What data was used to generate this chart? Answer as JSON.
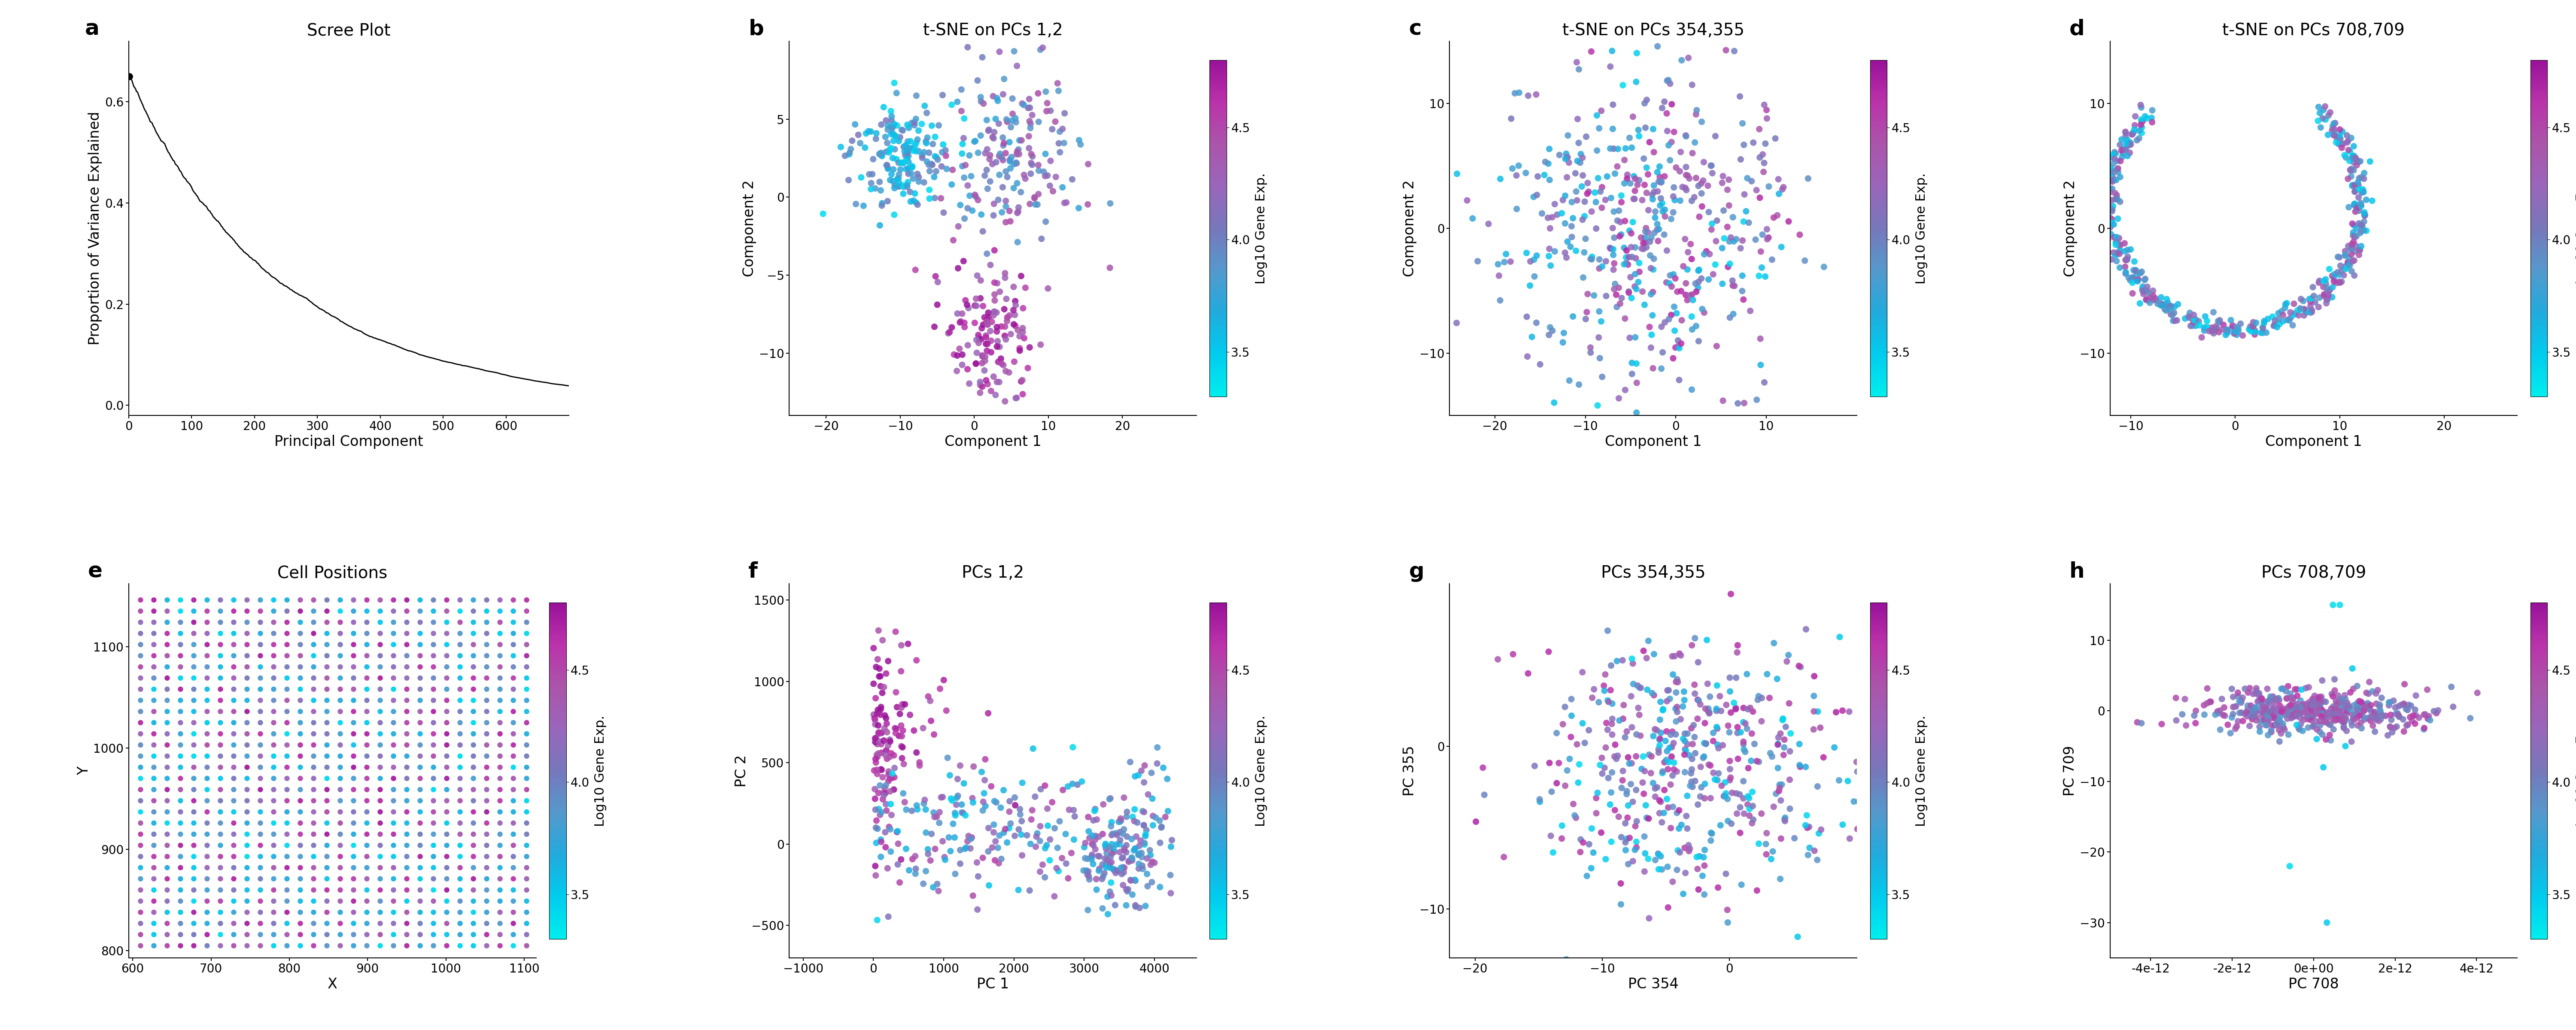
{
  "panels": {
    "a": {
      "title": "Scree Plot",
      "xlabel": "Principal Component",
      "ylabel": "Proportion of Variance Explained",
      "xlim": [
        0,
        700
      ],
      "ylim": [
        -0.02,
        0.72
      ],
      "xticks": [
        0,
        100,
        200,
        300,
        400,
        500,
        600
      ],
      "yticks": [
        0.0,
        0.2,
        0.4,
        0.6
      ]
    },
    "b": {
      "title": "t-SNE on PCs 1,2",
      "xlabel": "Component 1",
      "ylabel": "Component 2",
      "xlim": [
        -25,
        30
      ],
      "ylim": [
        -14,
        10
      ],
      "xticks": [
        -20,
        -10,
        0,
        10,
        20
      ],
      "yticks": [
        -10,
        -5,
        0,
        5
      ]
    },
    "c": {
      "title": "t-SNE on PCs 354,355",
      "xlabel": "Component 1",
      "ylabel": "Component 2",
      "xlim": [
        -25,
        20
      ],
      "ylim": [
        -15,
        15
      ],
      "xticks": [
        -20,
        -10,
        0,
        10
      ],
      "yticks": [
        -10,
        0,
        10
      ]
    },
    "d": {
      "title": "t-SNE on PCs 708,709",
      "xlabel": "Component 1",
      "ylabel": "Component 2",
      "xlim": [
        -12,
        27
      ],
      "ylim": [
        -15,
        15
      ],
      "xticks": [
        -10,
        0,
        10,
        20
      ],
      "yticks": [
        -10,
        0,
        10
      ]
    },
    "e": {
      "title": "Cell Positions",
      "xlabel": "X",
      "ylabel": "Y",
      "xlim": [
        595,
        1115
      ],
      "ylim": [
        793,
        1162
      ],
      "xticks": [
        600,
        700,
        800,
        900,
        1000,
        1100
      ],
      "yticks": [
        800,
        900,
        1000,
        1100
      ]
    },
    "f": {
      "title": "PCs 1,2",
      "xlabel": "PC 1",
      "ylabel": "PC 2",
      "xlim": [
        -1200,
        4600
      ],
      "ylim": [
        -700,
        1600
      ],
      "xticks": [
        -1000,
        0,
        1000,
        2000,
        3000,
        4000
      ],
      "yticks": [
        -500,
        0,
        500,
        1000,
        1500
      ]
    },
    "g": {
      "title": "PCs 354,355",
      "xlabel": "PC 354",
      "ylabel": "PC 355",
      "xlim": [
        -22,
        10
      ],
      "ylim": [
        -13,
        10
      ],
      "xticks": [
        -20,
        -10,
        0
      ],
      "yticks": [
        -10,
        0
      ]
    },
    "h": {
      "title": "PCs 708,709",
      "xlabel": "PC 708",
      "ylabel": "PC 709",
      "xlim": [
        -5e-12,
        5e-12
      ],
      "ylim": [
        -35,
        18
      ],
      "xticks": [
        -4e-12,
        -2e-12,
        0.0,
        2e-12,
        4e-12
      ],
      "yticks": [
        -30,
        -20,
        -10,
        0,
        10
      ]
    }
  },
  "cbar_label": "Log10 Gene Exp.",
  "cbar_ticks": [
    3.5,
    4.0,
    4.5
  ],
  "vmin": 3.3,
  "vmax": 4.8,
  "bg_color": "#ffffff",
  "panel_bg": "#ffffff",
  "seed": 42,
  "n_scatter": 500,
  "title_fontsize": 28,
  "label_fontsize": 24,
  "tick_fontsize": 20,
  "cbar_label_fontsize": 22,
  "cbar_tick_fontsize": 20,
  "panel_letter_fontsize": 36,
  "scatter_size": 120,
  "scatter_alpha": 0.85
}
